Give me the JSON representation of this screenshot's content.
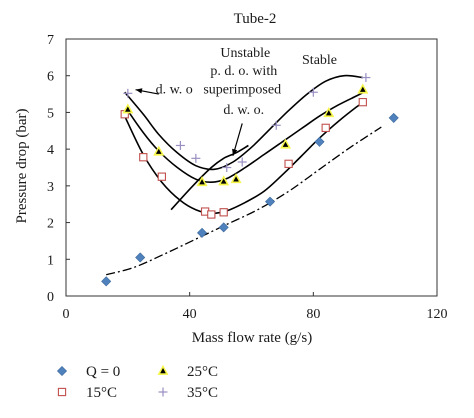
{
  "chart_data": {
    "type": "scatter",
    "title": "Tube-2",
    "xlabel": "Mass flow rate (g/s)",
    "ylabel": "Pressure drop (bar)",
    "xlim": [
      0,
      120
    ],
    "ylim": [
      0,
      7
    ],
    "xticks": [
      0,
      40,
      80,
      120
    ],
    "yticks": [
      0,
      1,
      2,
      3,
      4,
      5,
      6,
      7
    ],
    "grid": false,
    "legend_position": "bottom",
    "series": [
      {
        "name": "Q = 0",
        "marker": "diamond",
        "color": "#4f81bd",
        "points": [
          [
            13,
            0.4
          ],
          [
            24,
            1.05
          ],
          [
            44,
            1.72
          ],
          [
            51,
            1.87
          ],
          [
            66,
            2.57
          ],
          [
            82,
            4.2
          ],
          [
            106,
            4.85
          ]
        ]
      },
      {
        "name": "15°C",
        "marker": "square-open",
        "color": "#c0504d",
        "points": [
          [
            19,
            4.95
          ],
          [
            25,
            3.78
          ],
          [
            31,
            3.25
          ],
          [
            45,
            2.3
          ],
          [
            47,
            2.22
          ],
          [
            51,
            2.28
          ],
          [
            72,
            3.6
          ],
          [
            84,
            4.58
          ],
          [
            96,
            5.28
          ]
        ]
      },
      {
        "name": "25°C",
        "marker": "triangle",
        "color": "#000000",
        "fill": "#f6f64a",
        "points": [
          [
            20,
            5.08
          ],
          [
            30,
            3.93
          ],
          [
            44,
            3.1
          ],
          [
            51,
            3.12
          ],
          [
            55,
            3.18
          ],
          [
            71,
            4.12
          ],
          [
            85,
            4.98
          ],
          [
            96,
            5.62
          ]
        ]
      },
      {
        "name": "35°C",
        "marker": "plus",
        "color": "#9a8fc2",
        "points": [
          [
            20,
            5.52
          ],
          [
            37,
            4.1
          ],
          [
            42,
            3.75
          ],
          [
            52,
            3.5
          ],
          [
            57,
            3.65
          ],
          [
            68,
            4.65
          ],
          [
            80,
            5.55
          ],
          [
            97,
            5.95
          ]
        ]
      }
    ],
    "curves": [
      {
        "style": "solid",
        "points": [
          [
            19,
            5.55
          ],
          [
            25,
            4.95
          ],
          [
            30,
            4.4
          ],
          [
            36,
            3.9
          ],
          [
            42,
            3.55
          ],
          [
            48,
            3.45
          ],
          [
            54,
            3.65
          ],
          [
            60,
            4.05
          ],
          [
            66,
            4.55
          ],
          [
            72,
            5.05
          ],
          [
            78,
            5.5
          ],
          [
            84,
            5.85
          ],
          [
            90,
            6.0
          ],
          [
            96,
            5.95
          ]
        ]
      },
      {
        "style": "solid",
        "points": [
          [
            20,
            5.05
          ],
          [
            25,
            4.45
          ],
          [
            30,
            3.95
          ],
          [
            36,
            3.5
          ],
          [
            42,
            3.18
          ],
          [
            47,
            3.1
          ],
          [
            52,
            3.2
          ],
          [
            58,
            3.5
          ],
          [
            64,
            3.85
          ],
          [
            70,
            4.2
          ],
          [
            76,
            4.55
          ],
          [
            82,
            4.9
          ],
          [
            88,
            5.2
          ],
          [
            94,
            5.45
          ],
          [
            97,
            5.58
          ]
        ]
      },
      {
        "style": "solid",
        "points": [
          [
            19,
            4.9
          ],
          [
            25,
            3.85
          ],
          [
            31,
            3.1
          ],
          [
            37,
            2.6
          ],
          [
            42,
            2.35
          ],
          [
            47,
            2.25
          ],
          [
            52,
            2.32
          ],
          [
            58,
            2.55
          ],
          [
            64,
            2.85
          ],
          [
            70,
            3.3
          ],
          [
            76,
            3.8
          ],
          [
            82,
            4.3
          ],
          [
            88,
            4.75
          ],
          [
            94,
            5.15
          ],
          [
            97,
            5.32
          ]
        ]
      },
      {
        "style": "dashdot",
        "points": [
          [
            13,
            0.58
          ],
          [
            22,
            0.78
          ],
          [
            32,
            1.15
          ],
          [
            42,
            1.55
          ],
          [
            52,
            1.95
          ],
          [
            62,
            2.35
          ],
          [
            72,
            2.85
          ],
          [
            82,
            3.45
          ],
          [
            92,
            4.05
          ],
          [
            102,
            4.6
          ]
        ]
      },
      {
        "style": "solid",
        "points": [
          [
            34,
            2.35
          ],
          [
            41,
            3.0
          ],
          [
            47,
            3.5
          ],
          [
            51,
            3.75
          ],
          [
            55,
            3.9
          ],
          [
            59,
            4.1
          ]
        ]
      }
    ],
    "annotations": [
      {
        "text": "Unstable",
        "x": 58,
        "y": 6.65
      },
      {
        "text": "p. d. o. with",
        "x": 57.5,
        "y": 6.15
      },
      {
        "text": "superimposed",
        "x": 57,
        "y": 5.65
      },
      {
        "text": "d. w. o.",
        "x": 57.5,
        "y": 5.1
      },
      {
        "text": "d. w. o",
        "x": 35,
        "y": 5.65
      },
      {
        "text": "Stable",
        "x": 82,
        "y": 6.45
      }
    ],
    "arrows": [
      {
        "from": [
          57,
          4.7
        ],
        "to": [
          54,
          3.82
        ]
      },
      {
        "from": [
          30,
          5.5
        ],
        "to": [
          22.5,
          5.62
        ]
      }
    ]
  }
}
